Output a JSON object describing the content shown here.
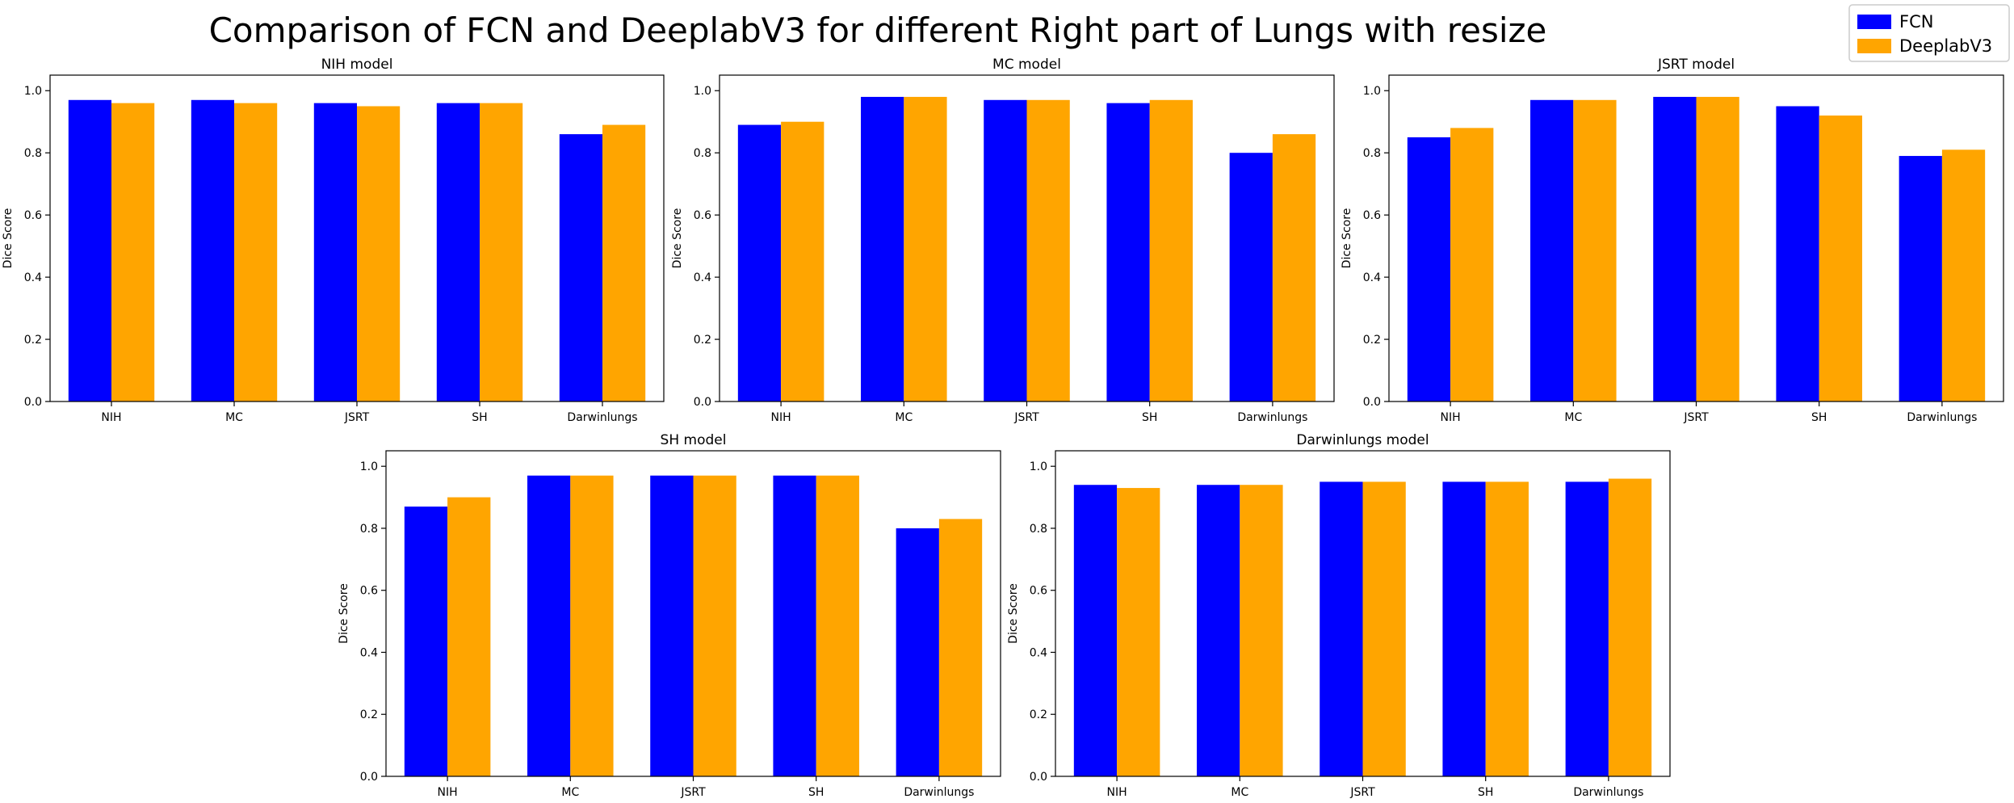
{
  "figure": {
    "title": "Comparison of FCN and DeeplabV3 for different Right part of Lungs with resize"
  },
  "legend": {
    "placement": "top-right",
    "entries": [
      {
        "label": "FCN",
        "color": "#0000ff"
      },
      {
        "label": "DeeplabV3",
        "color": "#ffa500"
      }
    ]
  },
  "chart_data": [
    {
      "type": "bar",
      "title": "NIH model",
      "ylabel": "Dice Score",
      "ylim": [
        0,
        1.0
      ],
      "yticks": [
        "0.0",
        "0.2",
        "0.4",
        "0.6",
        "0.8",
        "1.0"
      ],
      "categories": [
        "NIH",
        "MC",
        "JSRT",
        "SH",
        "Darwinlungs"
      ],
      "series": [
        {
          "name": "FCN",
          "values": [
            0.97,
            0.97,
            0.96,
            0.96,
            0.86
          ]
        },
        {
          "name": "DeeplabV3",
          "values": [
            0.96,
            0.96,
            0.95,
            0.96,
            0.89
          ]
        }
      ]
    },
    {
      "type": "bar",
      "title": "MC model",
      "ylabel": "Dice Score",
      "ylim": [
        0,
        1.0
      ],
      "yticks": [
        "0.0",
        "0.2",
        "0.4",
        "0.6",
        "0.8",
        "1.0"
      ],
      "categories": [
        "NIH",
        "MC",
        "JSRT",
        "SH",
        "Darwinlungs"
      ],
      "series": [
        {
          "name": "FCN",
          "values": [
            0.89,
            0.98,
            0.97,
            0.96,
            0.8
          ]
        },
        {
          "name": "DeeplabV3",
          "values": [
            0.9,
            0.98,
            0.97,
            0.97,
            0.86
          ]
        }
      ]
    },
    {
      "type": "bar",
      "title": "JSRT model",
      "ylabel": "Dice Score",
      "ylim": [
        0,
        1.0
      ],
      "yticks": [
        "0.0",
        "0.2",
        "0.4",
        "0.6",
        "0.8",
        "1.0"
      ],
      "categories": [
        "NIH",
        "MC",
        "JSRT",
        "SH",
        "Darwinlungs"
      ],
      "series": [
        {
          "name": "FCN",
          "values": [
            0.85,
            0.97,
            0.98,
            0.95,
            0.79
          ]
        },
        {
          "name": "DeeplabV3",
          "values": [
            0.88,
            0.97,
            0.98,
            0.92,
            0.81
          ]
        }
      ]
    },
    {
      "type": "bar",
      "title": "SH model",
      "ylabel": "Dice Score",
      "ylim": [
        0,
        1.0
      ],
      "yticks": [
        "0.0",
        "0.2",
        "0.4",
        "0.6",
        "0.8",
        "1.0"
      ],
      "categories": [
        "NIH",
        "MC",
        "JSRT",
        "SH",
        "Darwinlungs"
      ],
      "series": [
        {
          "name": "FCN",
          "values": [
            0.87,
            0.97,
            0.97,
            0.97,
            0.8
          ]
        },
        {
          "name": "DeeplabV3",
          "values": [
            0.9,
            0.97,
            0.97,
            0.97,
            0.83
          ]
        }
      ]
    },
    {
      "type": "bar",
      "title": "Darwinlungs model",
      "ylabel": "Dice Score",
      "ylim": [
        0,
        1.0
      ],
      "yticks": [
        "0.0",
        "0.2",
        "0.4",
        "0.6",
        "0.8",
        "1.0"
      ],
      "categories": [
        "NIH",
        "MC",
        "JSRT",
        "SH",
        "Darwinlungs"
      ],
      "series": [
        {
          "name": "FCN",
          "values": [
            0.94,
            0.94,
            0.95,
            0.95,
            0.95
          ]
        },
        {
          "name": "DeeplabV3",
          "values": [
            0.93,
            0.94,
            0.95,
            0.95,
            0.96
          ]
        }
      ]
    }
  ]
}
